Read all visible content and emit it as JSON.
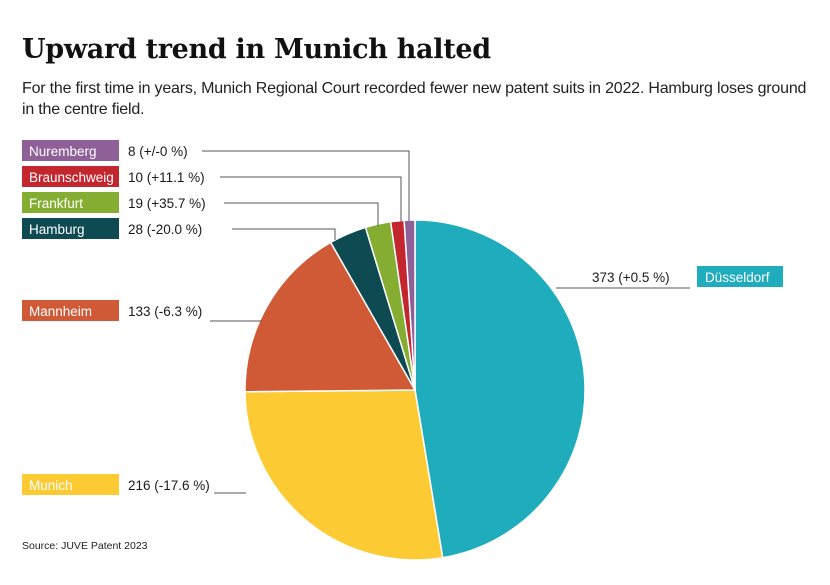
{
  "title": "Upward trend in Munich halted",
  "subtitle": "For the first time in years, Munich Regional Court recorded fewer new patent suits in 2022. Hamburg loses ground in the centre field.",
  "source": "Source: JUVE Patent 2023",
  "chart_data": {
    "type": "pie",
    "title": "Upward trend in Munich halted",
    "slices": [
      {
        "name": "Düsseldorf",
        "value": 373,
        "label": "373 (+0.5 %)",
        "color": "#1fadbe"
      },
      {
        "name": "Munich",
        "value": 216,
        "label": "216 (-17.6 %)",
        "color": "#fccb33"
      },
      {
        "name": "Mannheim",
        "value": 133,
        "label": "133 (-6.3 %)",
        "color": "#d05a36"
      },
      {
        "name": "Hamburg",
        "value": 28,
        "label": "28 (-20.0 %)",
        "color": "#0d4a52"
      },
      {
        "name": "Frankfurt",
        "value": 19,
        "label": "19 (+35.7 %)",
        "color": "#85ad32"
      },
      {
        "name": "Braunschweig",
        "value": 10,
        "label": "10 (+11.1 %)",
        "color": "#c4262e"
      },
      {
        "name": "Nuremberg",
        "value": 8,
        "label": "8 (+/-0 %)",
        "color": "#8e6097"
      }
    ]
  }
}
